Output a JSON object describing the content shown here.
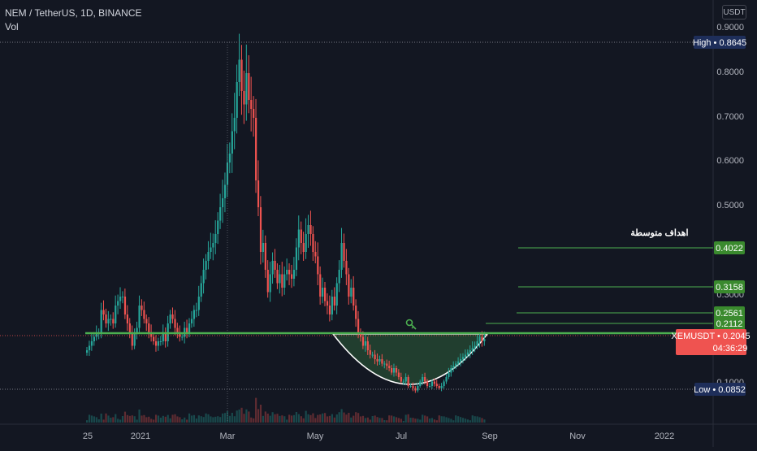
{
  "header": {
    "symbol_line": "NEM / TetherUS, 1D, BINANCE",
    "volume_label": "Vol",
    "currency_button": "USDT"
  },
  "annotation": {
    "arabic_text": "اهداف متوسطة"
  },
  "colors": {
    "background": "#131722",
    "up": "#26a69a",
    "down": "#ef5350",
    "neckline": "#4caf50",
    "target_line": "#4caf50",
    "target_label_bg": "#3a8a2e",
    "high_low_label_bg": "#1e2e5a",
    "last_price_bg": "#ef5350",
    "cup_fill": "#2e5e3a",
    "cup_stroke": "#ffffff",
    "axis_text": "#b2b5be"
  },
  "chart_data": {
    "type": "candlestick",
    "title": "NEM / TetherUS, 1D, BINANCE",
    "y_axis": {
      "ticks": [
        "0.9000",
        "0.8000",
        "0.7000",
        "0.6000",
        "0.5000",
        "0.4000",
        "0.3000",
        "0.1000"
      ],
      "range": [
        0.07,
        0.92
      ]
    },
    "x_axis": {
      "ticks": [
        "25",
        "2021",
        "Mar",
        "May",
        "Jul",
        "Sep",
        "Nov",
        "2022"
      ]
    },
    "price_labels": {
      "high": {
        "text": "High",
        "value": "0.8645"
      },
      "low": {
        "text": "Low",
        "value": "0.0852"
      },
      "last": {
        "symbol": "XEMUSDT",
        "value": "0.2045",
        "countdown": "04:36:29"
      }
    },
    "targets": [
      "0.4022",
      "0.3158",
      "0.2561",
      "0.2112"
    ],
    "neckline": 0.205,
    "series_close": [
      0.18,
      0.19,
      0.2,
      0.21,
      0.22,
      0.22,
      0.27,
      0.26,
      0.24,
      0.25,
      0.25,
      0.24,
      0.28,
      0.29,
      0.3,
      0.3,
      0.26,
      0.24,
      0.22,
      0.19,
      0.22,
      0.23,
      0.28,
      0.27,
      0.25,
      0.24,
      0.22,
      0.21,
      0.2,
      0.19,
      0.2,
      0.2,
      0.22,
      0.2,
      0.24,
      0.26,
      0.25,
      0.23,
      0.22,
      0.21,
      0.21,
      0.23,
      0.22,
      0.24,
      0.25,
      0.27,
      0.27,
      0.3,
      0.33,
      0.36,
      0.38,
      0.4,
      0.41,
      0.42,
      0.44,
      0.47,
      0.5,
      0.52,
      0.55,
      0.6,
      0.62,
      0.67,
      0.7,
      0.78,
      0.83,
      0.76,
      0.73,
      0.8,
      0.74,
      0.72,
      0.7,
      0.56,
      0.5,
      0.4,
      0.42,
      0.36,
      0.31,
      0.35,
      0.38,
      0.36,
      0.33,
      0.35,
      0.32,
      0.35,
      0.36,
      0.35,
      0.34,
      0.36,
      0.41,
      0.45,
      0.42,
      0.4,
      0.44,
      0.46,
      0.44,
      0.4,
      0.39,
      0.35,
      0.3,
      0.32,
      0.29,
      0.28,
      0.26,
      0.3,
      0.28,
      0.33,
      0.36,
      0.42,
      0.38,
      0.35,
      0.3,
      0.32,
      0.28,
      0.25,
      0.22,
      0.21,
      0.19,
      0.2,
      0.18,
      0.17,
      0.17,
      0.16,
      0.155,
      0.16,
      0.15,
      0.15,
      0.145,
      0.14,
      0.13,
      0.14,
      0.13,
      0.12,
      0.11,
      0.11,
      0.12,
      0.1,
      0.1,
      0.095,
      0.09,
      0.1,
      0.11,
      0.12,
      0.11,
      0.1,
      0.1,
      0.11,
      0.105,
      0.1,
      0.095,
      0.1,
      0.11,
      0.12,
      0.13,
      0.14,
      0.145,
      0.15,
      0.155,
      0.16,
      0.165,
      0.17,
      0.175,
      0.18,
      0.185,
      0.19,
      0.2,
      0.21,
      0.2,
      0.205
    ]
  }
}
